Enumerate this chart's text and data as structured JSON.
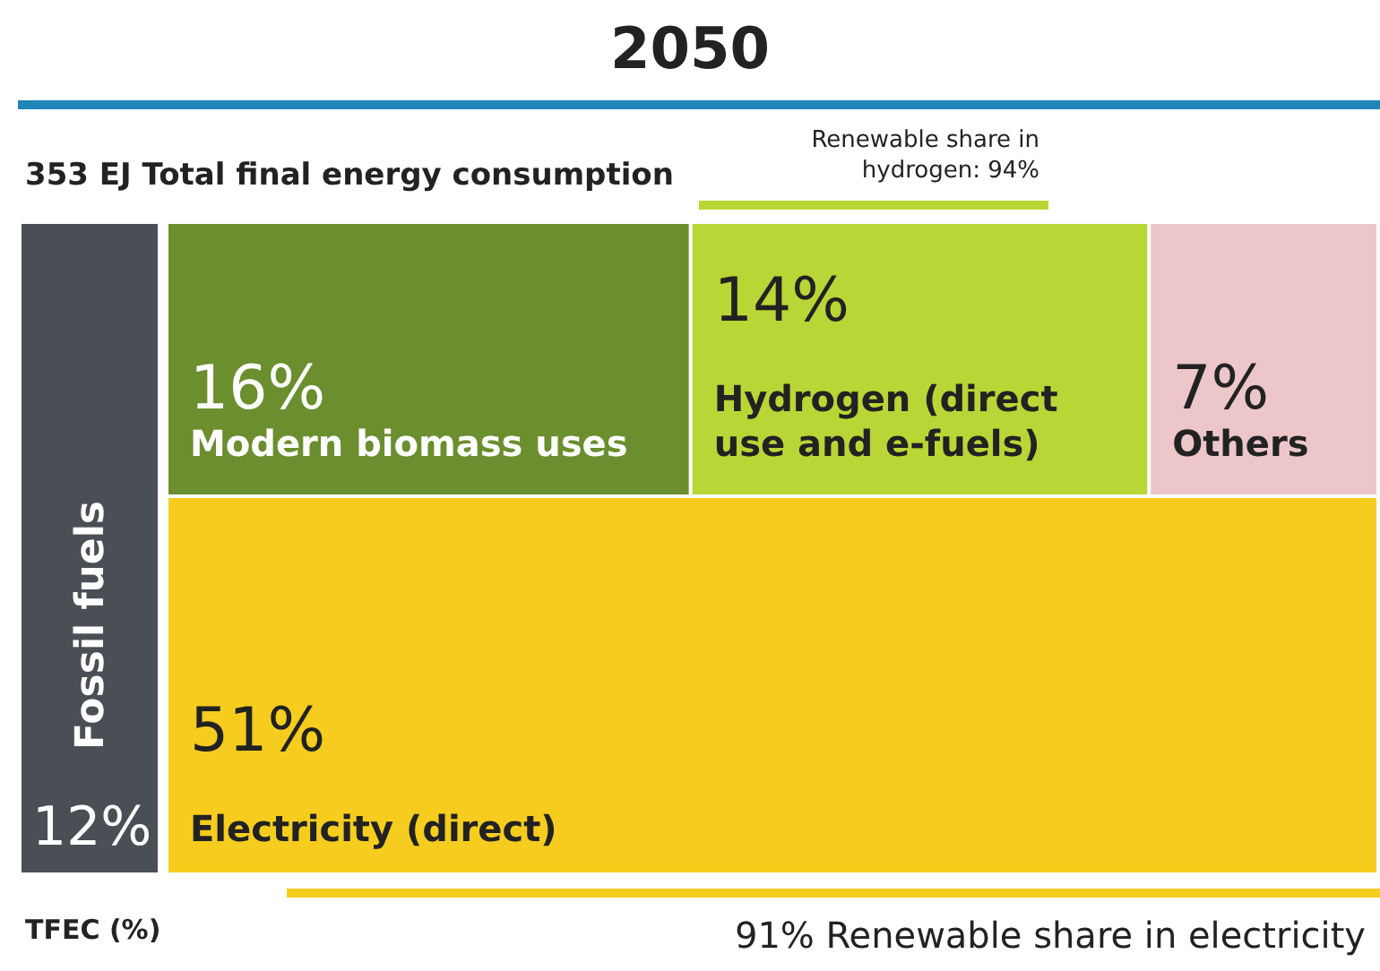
{
  "chart_data": {
    "type": "other",
    "title": "2050",
    "categories": [
      "Fossil fuels",
      "Modern biomass uses",
      "Hydrogen (direct use and e-fuels)",
      "Others",
      "Electricity (direct)"
    ],
    "values": [
      12,
      16,
      14,
      7,
      51
    ],
    "value_labels": [
      "12%",
      "16%",
      "14%",
      "7%",
      "51%"
    ],
    "colors": [
      "#4a4f55",
      "#6b8e2f",
      "#b8d636",
      "#ecc6c9",
      "#f6cd1f"
    ],
    "annotations": [
      "353 EJ Total final energy consumption",
      "Renewable share in hydrogen: 94%",
      "91% Renewable share in electricity",
      "TFEC (%)"
    ]
  }
}
